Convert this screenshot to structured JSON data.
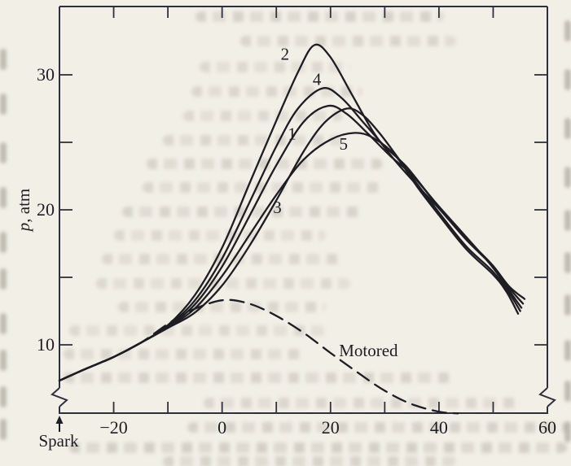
{
  "figure": {
    "paper_color": "#f2efe7",
    "ink_color": "#1d1d22",
    "axis_color": "#30303c",
    "description_of_visible_marks": "box-framed line chart, serif tick labels, broken y-axis at bottom of left and right borders"
  },
  "chart_data": {
    "type": "line",
    "title": "",
    "xlabel": "",
    "ylabel": "p, atm",
    "xlim": [
      -30,
      60
    ],
    "ylim": [
      5,
      35
    ],
    "grid": false,
    "framed_box": true,
    "axis_break_note": "y-axis broken below p≈7 on both left and right borders",
    "x_ticks": [
      -20,
      -10,
      0,
      10,
      20,
      30,
      40,
      50,
      60
    ],
    "x_tick_labels": [
      {
        "value": -20,
        "label": "−20"
      },
      {
        "value": 0,
        "label": "0"
      },
      {
        "value": 20,
        "label": "20"
      },
      {
        "value": 40,
        "label": "40"
      },
      {
        "value": 60,
        "label": "60"
      }
    ],
    "y_ticks": [
      10,
      15,
      20,
      25,
      30
    ],
    "y_tick_labels": [
      {
        "value": 10,
        "label": "10"
      },
      {
        "value": 20,
        "label": "20"
      },
      {
        "value": 30,
        "label": "30"
      }
    ],
    "series": [
      {
        "name": "cycle-2",
        "dash": false,
        "points": [
          [
            -30,
            7.35
          ],
          [
            -25,
            8.25
          ],
          [
            -20,
            9.1
          ],
          [
            -15,
            10.15
          ],
          [
            -10,
            11.45
          ],
          [
            -5,
            13.7
          ],
          [
            0,
            17.2
          ],
          [
            5,
            21.9
          ],
          [
            10,
            26.6
          ],
          [
            14,
            30.2
          ],
          [
            17,
            32.2
          ],
          [
            20,
            31.3
          ],
          [
            24,
            28.5
          ],
          [
            28,
            25.7
          ],
          [
            32,
            23.6
          ],
          [
            36,
            21.8
          ],
          [
            40,
            20.1
          ],
          [
            45,
            17.8
          ],
          [
            50,
            15.8
          ],
          [
            53,
            14.3
          ],
          [
            55.8,
            13.4
          ]
        ]
      },
      {
        "name": "cycle-4",
        "dash": false,
        "points": [
          [
            -30,
            7.35
          ],
          [
            -25,
            8.25
          ],
          [
            -20,
            9.1
          ],
          [
            -15,
            10.15
          ],
          [
            -10,
            11.4
          ],
          [
            -5,
            13.3
          ],
          [
            0,
            16.4
          ],
          [
            5,
            20.5
          ],
          [
            10,
            24.7
          ],
          [
            14,
            27.5
          ],
          [
            18.5,
            29.0
          ],
          [
            22,
            28.3
          ],
          [
            26,
            26.5
          ],
          [
            30,
            24.7
          ],
          [
            34,
            23.2
          ],
          [
            38,
            21.2
          ],
          [
            42,
            19.3
          ],
          [
            46,
            17.5
          ],
          [
            50,
            15.85
          ],
          [
            53,
            14.2
          ],
          [
            55.5,
            13.05
          ]
        ]
      },
      {
        "name": "cycle-1",
        "dash": false,
        "points": [
          [
            -30,
            7.35
          ],
          [
            -25,
            8.25
          ],
          [
            -20,
            9.1
          ],
          [
            -15,
            10.15
          ],
          [
            -10,
            11.35
          ],
          [
            -5,
            13.0
          ],
          [
            0,
            15.8
          ],
          [
            5,
            19.5
          ],
          [
            10,
            23.3
          ],
          [
            15,
            26.5
          ],
          [
            19.5,
            27.7
          ],
          [
            23,
            27.1
          ],
          [
            27,
            25.6
          ],
          [
            31,
            24.0
          ],
          [
            35,
            22.6
          ],
          [
            39,
            20.7
          ],
          [
            43,
            18.9
          ],
          [
            47,
            17.1
          ],
          [
            50,
            15.7
          ],
          [
            53,
            14.0
          ],
          [
            55.2,
            12.75
          ]
        ]
      },
      {
        "name": "cycle-3",
        "dash": false,
        "points": [
          [
            -30,
            7.35
          ],
          [
            -25,
            8.25
          ],
          [
            -20,
            9.1
          ],
          [
            -15,
            10.15
          ],
          [
            -10,
            11.25
          ],
          [
            -5,
            12.4
          ],
          [
            0,
            14.4
          ],
          [
            5,
            17.3
          ],
          [
            10,
            20.7
          ],
          [
            15,
            24.3
          ],
          [
            19,
            26.5
          ],
          [
            23,
            27.5
          ],
          [
            26,
            27.0
          ],
          [
            29,
            25.7
          ],
          [
            32,
            24.1
          ],
          [
            36,
            21.9
          ],
          [
            40,
            19.8
          ],
          [
            45,
            17.3
          ],
          [
            50,
            15.4
          ],
          [
            53,
            13.8
          ],
          [
            55,
            12.5
          ]
        ]
      },
      {
        "name": "cycle-5",
        "dash": false,
        "points": [
          [
            -30,
            7.35
          ],
          [
            -25,
            8.25
          ],
          [
            -20,
            9.1
          ],
          [
            -15,
            10.15
          ],
          [
            -10,
            11.3
          ],
          [
            -5,
            12.7
          ],
          [
            0,
            15.1
          ],
          [
            5,
            18.1
          ],
          [
            10,
            21.1
          ],
          [
            15,
            23.7
          ],
          [
            20,
            25.2
          ],
          [
            24.5,
            25.7
          ],
          [
            28,
            25.3
          ],
          [
            32,
            24.0
          ],
          [
            36,
            21.7
          ],
          [
            40,
            19.6
          ],
          [
            45,
            17.1
          ],
          [
            50,
            15.2
          ],
          [
            52.5,
            13.9
          ],
          [
            54.6,
            12.3
          ]
        ]
      },
      {
        "name": "motored",
        "dash": true,
        "points": [
          [
            -30,
            7.35
          ],
          [
            -25,
            8.25
          ],
          [
            -20,
            9.1
          ],
          [
            -15,
            10.15
          ],
          [
            -10,
            11.55
          ],
          [
            -6,
            12.5
          ],
          [
            0,
            13.3
          ],
          [
            5,
            13.05
          ],
          [
            10,
            12.15
          ],
          [
            15,
            10.9
          ],
          [
            20,
            9.4
          ],
          [
            25,
            7.95
          ],
          [
            30,
            6.6
          ],
          [
            35,
            5.6
          ],
          [
            40,
            5.05
          ],
          [
            43.5,
            4.92
          ]
        ]
      }
    ],
    "curve_labels": [
      {
        "text": "2",
        "x": 11.6,
        "y": 31.1
      },
      {
        "text": "4",
        "x": 17.5,
        "y": 29.25
      },
      {
        "text": "1",
        "x": 12.9,
        "y": 25.2
      },
      {
        "text": "5",
        "x": 22.4,
        "y": 24.45
      },
      {
        "text": "3",
        "x": 10.2,
        "y": 19.75
      },
      {
        "text": "Motored",
        "x": 27.0,
        "y": 9.15
      }
    ],
    "annotations": [
      {
        "text": "Spark",
        "x": -30,
        "placement": "below x-axis at left border, upward arrow to axis"
      }
    ]
  }
}
